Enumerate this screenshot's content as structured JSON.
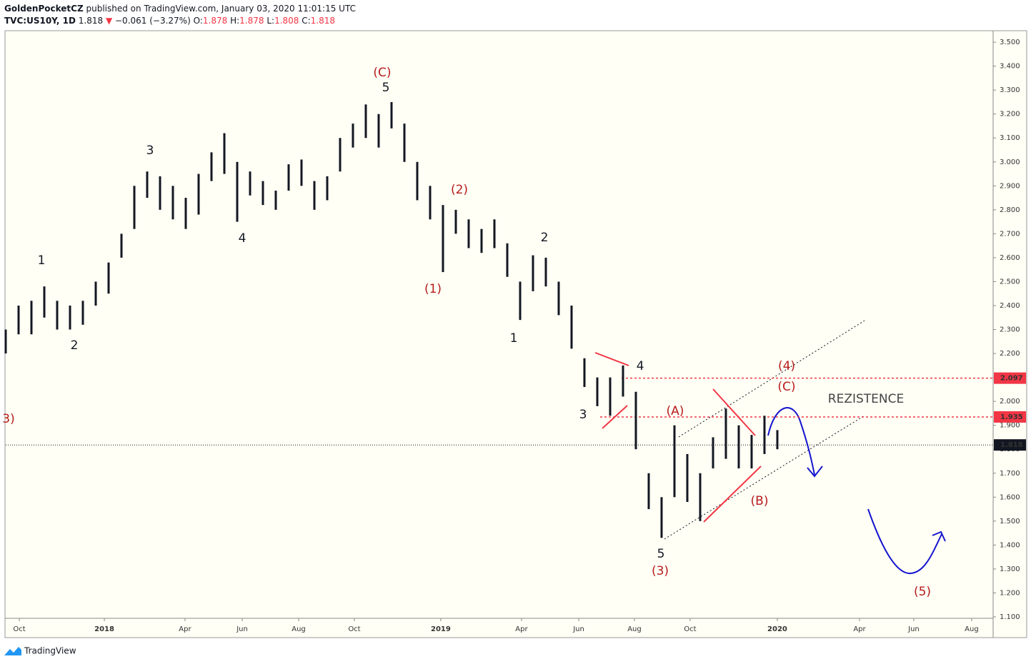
{
  "header": {
    "author": "GoldenPocketCZ",
    "published": "published on TradingView.com, January 03, 2020 11:01:15 UTC",
    "symbol": "TVC:US10Y, 1D",
    "price": 1.818,
    "arrow": "▼",
    "change": "−0.061 (−3.27%)",
    "o_label": "O:",
    "o": 1.878,
    "h_label": "H:",
    "h": 1.878,
    "l_label": "L:",
    "l": 1.808,
    "c_label": "C:",
    "c": 1.818
  },
  "footer": {
    "brand": "TradingView"
  },
  "chart_data": {
    "type": "range",
    "bar_color": "#131722",
    "high": [
      2.3,
      2.4,
      2.42,
      2.48,
      2.42,
      2.4,
      2.42,
      2.5,
      2.58,
      2.7,
      2.9,
      2.96,
      2.94,
      2.9,
      2.85,
      2.95,
      3.04,
      3.12,
      3.0,
      2.96,
      2.92,
      2.88,
      2.99,
      3.01,
      2.92,
      2.94,
      3.1,
      3.16,
      3.24,
      3.2,
      3.25,
      3.16,
      3.0,
      2.9,
      2.82,
      2.8,
      2.76,
      2.72,
      2.76,
      2.66,
      2.5,
      2.61,
      2.6,
      2.5,
      2.4,
      2.18,
      2.1,
      2.1,
      2.15,
      2.04,
      1.7,
      1.6,
      1.9,
      1.78,
      1.7,
      1.85,
      1.97,
      1.9,
      1.86,
      1.94,
      1.88
    ],
    "low": [
      2.2,
      2.28,
      2.28,
      2.35,
      2.3,
      2.3,
      2.32,
      2.4,
      2.45,
      2.6,
      2.72,
      2.85,
      2.8,
      2.76,
      2.72,
      2.78,
      2.92,
      2.95,
      2.75,
      2.86,
      2.82,
      2.8,
      2.88,
      2.9,
      2.8,
      2.84,
      2.96,
      3.06,
      3.1,
      3.06,
      3.14,
      3.0,
      2.84,
      2.76,
      2.54,
      2.7,
      2.64,
      2.62,
      2.64,
      2.52,
      2.34,
      2.46,
      2.48,
      2.36,
      2.22,
      2.06,
      1.98,
      1.94,
      2.02,
      1.8,
      1.55,
      1.43,
      1.6,
      1.58,
      1.5,
      1.72,
      1.76,
      1.72,
      1.72,
      1.78,
      1.8
    ],
    "xlim": [
      0,
      76.78
    ],
    "xticks": [
      {
        "value": 1.06,
        "label": "Oct"
      },
      {
        "value": 7.67,
        "label": "2018"
      },
      {
        "value": 13.94,
        "label": "Apr"
      },
      {
        "value": 18.39,
        "label": "Jun"
      },
      {
        "value": 22.78,
        "label": "Aug"
      },
      {
        "value": 27.11,
        "label": "Oct"
      },
      {
        "value": 33.83,
        "label": "2019"
      },
      {
        "value": 40.11,
        "label": "Apr"
      },
      {
        "value": 44.56,
        "label": "Jun"
      },
      {
        "value": 48.89,
        "label": "Aug"
      },
      {
        "value": 53.22,
        "label": "Oct"
      },
      {
        "value": 60,
        "label": "2020"
      },
      {
        "value": 66.39,
        "label": "Apr"
      },
      {
        "value": 70.61,
        "label": "Jun"
      },
      {
        "value": 75.11,
        "label": "Aug"
      }
    ],
    "ylim": [
      1.094,
      3.548
    ],
    "yticks": [
      {
        "value": 1.1,
        "label": "1.100"
      },
      {
        "value": 1.2,
        "label": "1.200"
      },
      {
        "value": 1.3,
        "label": "1.300"
      },
      {
        "value": 1.4,
        "label": "1.400"
      },
      {
        "value": 1.5,
        "label": "1.500"
      },
      {
        "value": 1.6,
        "label": "1.600"
      },
      {
        "value": 1.7,
        "label": "1.700"
      },
      {
        "value": 1.8,
        "label": "1.800"
      },
      {
        "value": 1.9,
        "label": "1.900"
      },
      {
        "value": 2.0,
        "label": "2.000"
      },
      {
        "value": 2.1,
        "label": "2.100"
      },
      {
        "value": 2.2,
        "label": "2.200"
      },
      {
        "value": 2.3,
        "label": "2.300"
      },
      {
        "value": 2.4,
        "label": "2.400"
      },
      {
        "value": 2.5,
        "label": "2.500"
      },
      {
        "value": 2.6,
        "label": "2.600"
      },
      {
        "value": 2.7,
        "label": "2.700"
      },
      {
        "value": 2.8,
        "label": "2.800"
      },
      {
        "value": 2.9,
        "label": "2.900"
      },
      {
        "value": 3.0,
        "label": "3.000"
      },
      {
        "value": 3.1,
        "label": "3.100"
      },
      {
        "value": 3.2,
        "label": "3.200"
      },
      {
        "value": 3.3,
        "label": "3.300"
      },
      {
        "value": 3.4,
        "label": "3.400"
      },
      {
        "value": 3.5,
        "label": "3.500"
      }
    ],
    "levels": [
      {
        "value": 2.097,
        "color": "#f23645"
      },
      {
        "value": 1.935,
        "color": "#f23645"
      }
    ],
    "last_price": 1.818,
    "annotations": [
      {
        "text": "(C)",
        "color": "#b71c1c"
      },
      {
        "text": "5",
        "color": "#131722"
      },
      {
        "text": "3",
        "color": "#131722"
      },
      {
        "text": "1",
        "color": "#131722"
      },
      {
        "text": "2",
        "color": "#131722"
      },
      {
        "text": "4",
        "color": "#131722"
      },
      {
        "text": "(2)",
        "color": "#b71c1c"
      },
      {
        "text": "(1)",
        "color": "#b71c1c"
      },
      {
        "text": "2",
        "color": "#131722"
      },
      {
        "text": "1",
        "color": "#131722"
      },
      {
        "text": "4",
        "color": "#131722"
      },
      {
        "text": "3",
        "color": "#131722"
      },
      {
        "text": "5",
        "color": "#131722"
      },
      {
        "text": "(3)",
        "color": "#b71c1c"
      },
      {
        "text": "(A)",
        "color": "#b71c1c"
      },
      {
        "text": "(4)",
        "color": "#b71c1c"
      },
      {
        "text": "(C)",
        "color": "#b71c1c"
      },
      {
        "text": "(B)",
        "color": "#b71c1c"
      },
      {
        "text": "REZISTENCE",
        "color": "#444444"
      },
      {
        "text": "(5)",
        "color": "#b71c1c"
      },
      {
        "text": "3)",
        "color": "#b71c1c"
      }
    ]
  }
}
